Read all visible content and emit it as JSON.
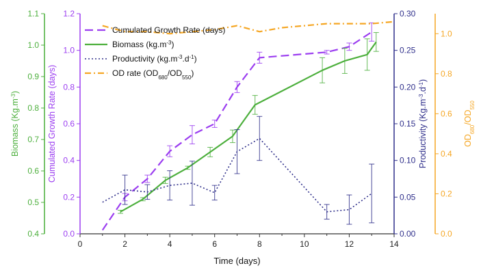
{
  "chart_data": {
    "type": "line",
    "xlabel": "Time (days)",
    "xlim": [
      0,
      14
    ],
    "xticks": [
      "0",
      "2",
      "4",
      "6",
      "8",
      "10",
      "12",
      "14"
    ],
    "axes": {
      "biomass": {
        "label_main": "Biomass (Kg.m",
        "label_sup": "-3",
        "label_end": ")",
        "color": "#4caf3c",
        "lim": [
          0.4,
          1.1
        ],
        "ticks": [
          "0.4",
          "0.5",
          "0.6",
          "0.7",
          "0.8",
          "0.9",
          "1.0",
          "1.1"
        ]
      },
      "growth": {
        "label": "Cumulated Growth Rate (days)",
        "color": "#9b3df0",
        "lim": [
          0.0,
          1.2
        ],
        "ticks": [
          "0.0",
          "0.2",
          "0.4",
          "0.6",
          "0.8",
          "1.0",
          "1.2"
        ]
      },
      "productivity": {
        "label_main": "Productivity (Kg.m",
        "label_sup1": "-3",
        "label_mid": ".d",
        "label_sup2": "-1",
        "label_end": ")",
        "color": "#2e2e8a",
        "lim": [
          0.0,
          0.3
        ],
        "ticks": [
          "0.00",
          "0.05",
          "0.10",
          "0.15",
          "0.20",
          "0.25",
          "0.30"
        ]
      },
      "od": {
        "label_main": "OD",
        "label_sub1": "680",
        "label_mid": "/OD",
        "label_sub2": "550",
        "color": "#f5a623",
        "lim": [
          0.0,
          1.1
        ],
        "ticks": [
          "0.0",
          "0.2",
          "0.4",
          "0.6",
          "0.8",
          "1.0"
        ]
      }
    },
    "series": [
      {
        "name": "Cumulated Growth Rate (days)",
        "axis": "growth",
        "style": "dashed",
        "legend_main": "Cumulated Growth Rate (days)",
        "x": [
          1,
          2,
          3,
          4,
          5,
          6,
          7,
          8,
          11,
          12,
          13
        ],
        "y": [
          0.02,
          0.2,
          0.3,
          0.45,
          0.54,
          0.6,
          0.8,
          0.96,
          0.99,
          1.02,
          1.1
        ],
        "err": [
          0,
          0.02,
          0.02,
          0.03,
          0.05,
          0.02,
          0.03,
          0.03,
          0.01,
          0.02,
          0.05
        ]
      },
      {
        "name": "Biomass (kg.m-3)",
        "axis": "biomass",
        "style": "solid",
        "legend_main": "Biomass (kg.m",
        "legend_sup": "-3",
        "legend_end": ")",
        "x": [
          1.8,
          2.8,
          3.8,
          4.8,
          5.8,
          6.8,
          7.8,
          10.8,
          11.8,
          12.8,
          13.2
        ],
        "y": [
          0.47,
          0.51,
          0.57,
          0.61,
          0.66,
          0.71,
          0.81,
          0.92,
          0.95,
          0.97,
          1.01
        ],
        "err": [
          0.005,
          0.005,
          0.01,
          0.005,
          0.015,
          0.02,
          0.03,
          0.04,
          0.04,
          0.05,
          0.03
        ]
      },
      {
        "name": "Productivity (kg.m-3.d-1)",
        "axis": "productivity",
        "style": "dotted",
        "legend_main": "Productivity (kg.m",
        "legend_sup1": "-3",
        "legend_mid": ".d",
        "legend_sup2": "-1",
        "legend_end": ")",
        "x": [
          1,
          2,
          3,
          4,
          5,
          6,
          7,
          8,
          11,
          12,
          13
        ],
        "y": [
          0.043,
          0.06,
          0.057,
          0.066,
          0.069,
          0.056,
          0.112,
          0.13,
          0.03,
          0.033,
          0.055
        ],
        "err": [
          0,
          0.02,
          0.01,
          0.02,
          0.03,
          0.01,
          0.03,
          0.03,
          0.01,
          0.02,
          0.04
        ]
      },
      {
        "name": "OD rate (OD680/OD550)",
        "axis": "od",
        "style": "dashdot",
        "legend_main": "OD rate (OD",
        "legend_sub1": "680",
        "legend_mid": "/OD",
        "legend_sub2": "550",
        "legend_end": ")",
        "x": [
          1,
          2,
          3,
          4,
          5,
          6,
          7,
          8,
          9,
          10,
          11,
          12,
          13,
          14
        ],
        "y": [
          1.04,
          1.01,
          1.01,
          1.0,
          1.01,
          1.02,
          1.04,
          1.01,
          1.03,
          1.04,
          1.05,
          1.05,
          1.05,
          1.06
        ]
      }
    ],
    "legend_position": "top-left",
    "grid": false
  }
}
